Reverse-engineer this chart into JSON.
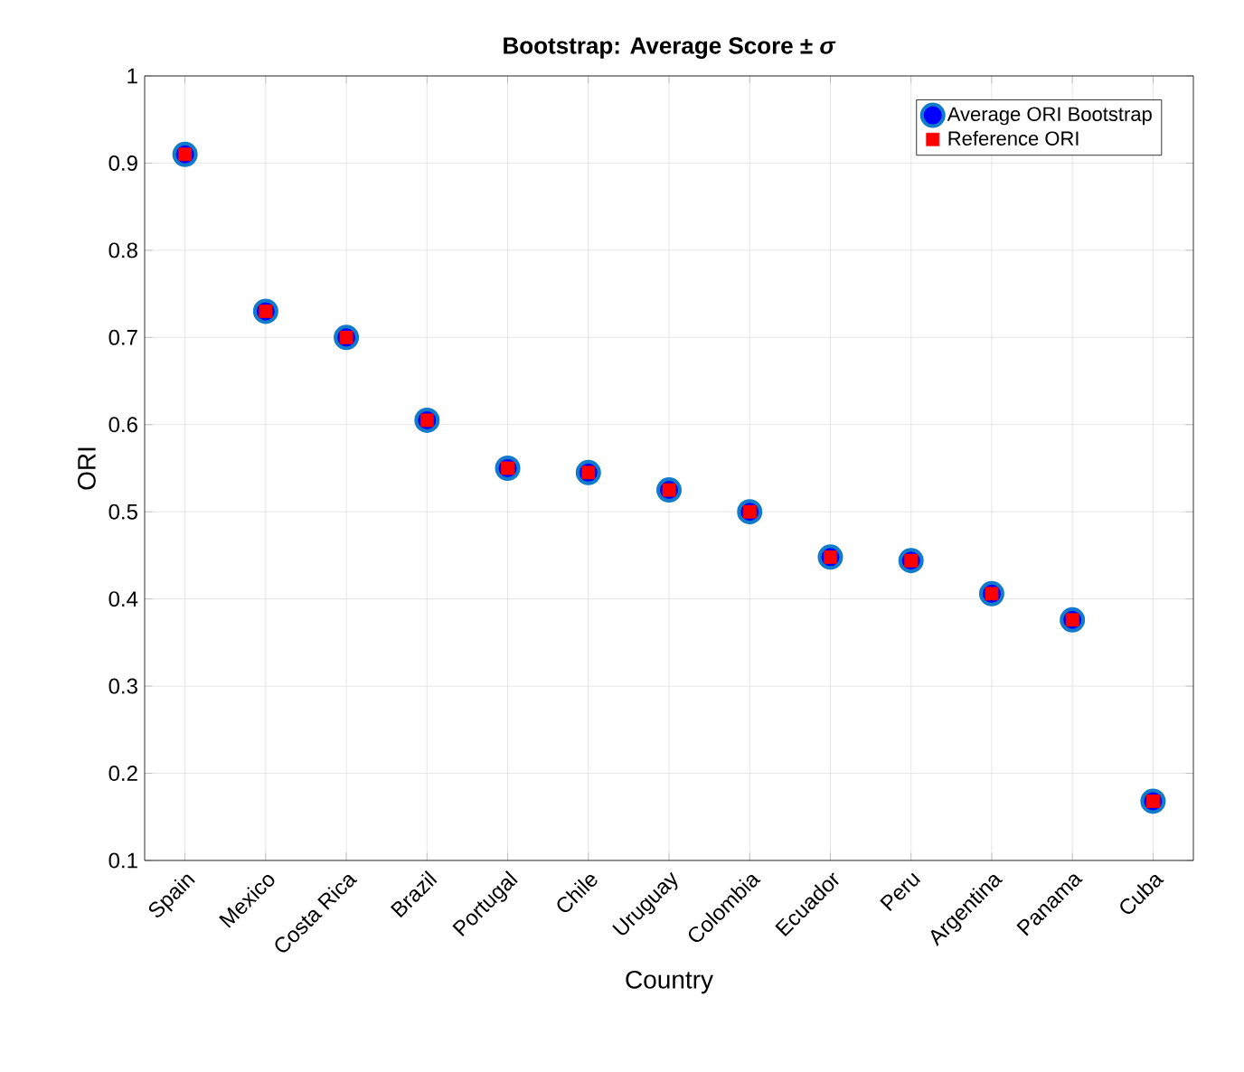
{
  "chart_data": {
    "type": "scatter",
    "title": "Bootstrap: Average Score ± *σ*",
    "xlabel": "Country",
    "ylabel": "ORI",
    "categories": [
      "Spain",
      "Mexico",
      "Costa Rica",
      "Brazil",
      "Portugal",
      "Chile",
      "Uruguay",
      "Colombia",
      "Ecuador",
      "Peru",
      "Argentina",
      "Panama",
      "Cuba"
    ],
    "series": [
      {
        "name": "Average ORI Bootstrap",
        "color": "#0000ff",
        "marker": "circle",
        "values": [
          0.91,
          0.73,
          0.7,
          0.605,
          0.55,
          0.545,
          0.525,
          0.5,
          0.448,
          0.444,
          0.406,
          0.376,
          0.168
        ]
      },
      {
        "name": "Reference ORI",
        "color": "#ff0000",
        "marker": "square",
        "values": [
          0.91,
          0.73,
          0.7,
          0.605,
          0.55,
          0.545,
          0.525,
          0.5,
          0.448,
          0.444,
          0.406,
          0.376,
          0.168
        ]
      }
    ],
    "ylim": [
      0.1,
      1
    ],
    "yticks": [
      0.1,
      0.2,
      0.3,
      0.4,
      0.5,
      0.6,
      0.7,
      0.8,
      0.9,
      1
    ],
    "grid": true,
    "legend": "top right"
  }
}
